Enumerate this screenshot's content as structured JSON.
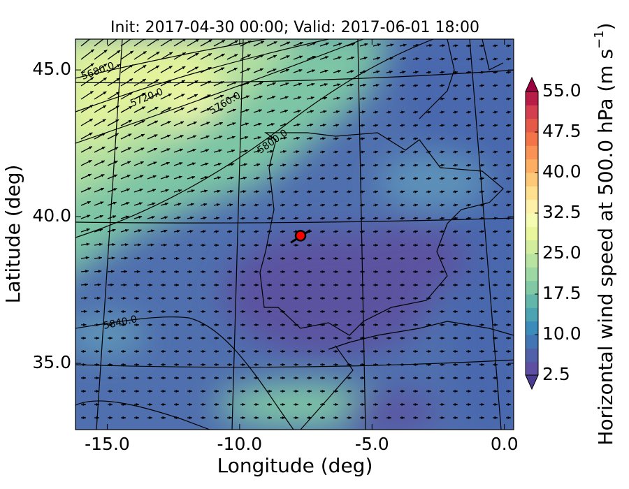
{
  "title": "Init: 2017-04-30 00:00; Valid: 2017-06-01 18:00",
  "x_axis": {
    "label": "Longitude (deg)",
    "lim": [
      -16.2,
      0.35
    ],
    "ticks": [
      {
        "value": -15,
        "label": "-15.0"
      },
      {
        "value": -10,
        "label": "-10.0"
      },
      {
        "value": -5,
        "label": "-5.0"
      },
      {
        "value": 0,
        "label": "0.0"
      }
    ]
  },
  "y_axis": {
    "label": "Latitude (deg)",
    "lim": [
      32.74,
      46.05
    ],
    "ticks": [
      {
        "value": 35,
        "label": "35.0"
      },
      {
        "value": 40,
        "label": "40.0"
      },
      {
        "value": 45,
        "label": "45.0"
      }
    ]
  },
  "colorbar": {
    "label": "Horizontal wind speed at 500.0 hPa (m s",
    "superscript": "−1",
    "close": ")",
    "lim": [
      2.5,
      55
    ],
    "ticks": [
      {
        "value": 2.5,
        "label": "2.5"
      },
      {
        "value": 10,
        "label": "10.0"
      },
      {
        "value": 17.5,
        "label": "17.5"
      },
      {
        "value": 25,
        "label": "25.0"
      },
      {
        "value": 32.5,
        "label": "32.5"
      },
      {
        "value": 40,
        "label": "40.0"
      },
      {
        "value": 47.5,
        "label": "47.5"
      },
      {
        "value": 55,
        "label": "55.0"
      }
    ],
    "colors": [
      "#5e4fa2",
      "#5061aa",
      "#4275b3",
      "#3b8bbb",
      "#4ca3b2",
      "#63b6a9",
      "#80c9a4",
      "#9dd7a4",
      "#b8e3a1",
      "#d2ed9d",
      "#e9f69c",
      "#f6fbb2",
      "#fdf1a9",
      "#fee08e",
      "#fdc877",
      "#fdae62",
      "#f99355",
      "#f37547",
      "#e45947",
      "#d33f4e",
      "#b81d48"
    ],
    "under_color": "#4a3d8f",
    "over_color": "#9e0142"
  },
  "contour_labels": [
    "5680.0",
    "5720.0",
    "5760.0",
    "5800.0",
    "5840.0"
  ],
  "marker": {
    "lon": -7.7,
    "lat": 39.35,
    "color": "#ff0000"
  }
}
